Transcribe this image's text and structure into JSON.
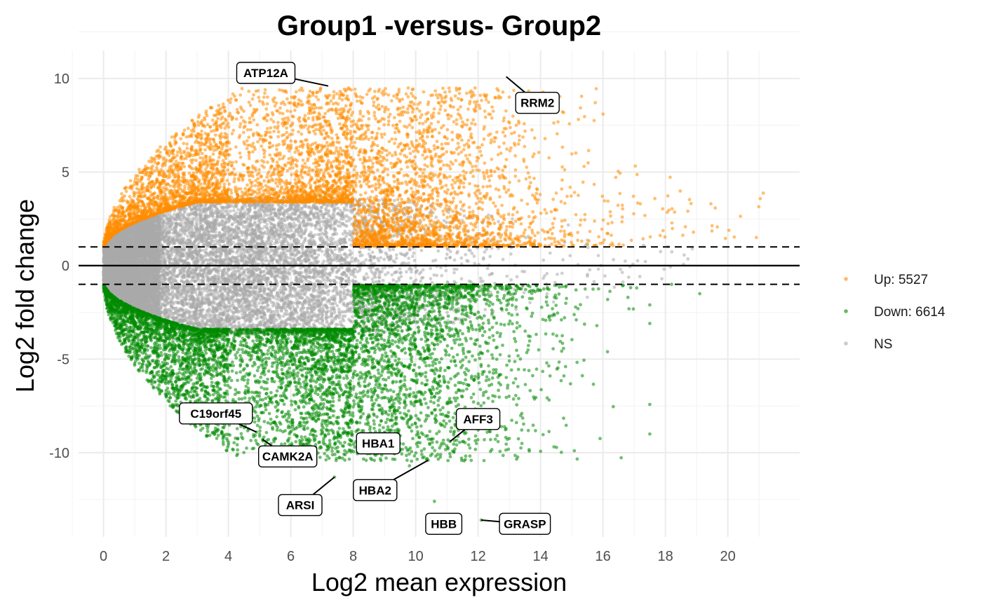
{
  "chart_data": {
    "type": "scatter",
    "title": "Group1 -versus- Group2",
    "xlabel": "Log2 mean expression",
    "ylabel": "Log2 fold change",
    "xlim": [
      -0.8,
      22.3
    ],
    "ylim": [
      -14.5,
      11.5
    ],
    "x_ticks": [
      0,
      2,
      4,
      6,
      8,
      10,
      12,
      14,
      16,
      18,
      20
    ],
    "y_ticks": [
      10,
      5,
      0,
      -5,
      -10
    ],
    "x_tick_labels": [
      "0",
      "2",
      "4",
      "6",
      "8",
      "10",
      "12",
      "14",
      "16",
      "18",
      "20"
    ],
    "y_tick_labels": [
      "10",
      "5",
      "0",
      "-5",
      "-10"
    ],
    "grid": true,
    "hlines": [
      {
        "y": 0,
        "style": "solid"
      },
      {
        "y": 1,
        "style": "dashed"
      },
      {
        "y": -1,
        "style": "dashed"
      }
    ],
    "legend_position": "right",
    "series": [
      {
        "name": "Up: 5527",
        "color": "#FF8C00",
        "count": 5527
      },
      {
        "name": "Down: 6614",
        "color": "#008B00",
        "count": 6614
      },
      {
        "name": "NS",
        "color": "#A9A9A9"
      }
    ],
    "labeled_points": [
      {
        "label": "ATP12A",
        "x": 7.2,
        "y": 9.6,
        "lx": 5.2,
        "ly": 10.3
      },
      {
        "label": "RRM2",
        "x": 12.9,
        "y": 10.1,
        "lx": 13.9,
        "ly": 8.7
      },
      {
        "label": "C19orf45",
        "x": 4.9,
        "y": -8.9,
        "lx": 3.6,
        "ly": -7.9
      },
      {
        "label": "CAMK2A",
        "x": 5.1,
        "y": -9.3,
        "lx": 5.9,
        "ly": -10.2
      },
      {
        "label": "ARSI",
        "x": 7.4,
        "y": -11.3,
        "lx": 6.3,
        "ly": -12.8
      },
      {
        "label": "HBA1",
        "x": 9.2,
        "y": -9.6,
        "lx": 8.8,
        "ly": -9.5
      },
      {
        "label": "HBA2",
        "x": 10.4,
        "y": -10.4,
        "lx": 8.7,
        "ly": -12.0
      },
      {
        "label": "AFF3",
        "x": 11.1,
        "y": -9.4,
        "lx": 12.0,
        "ly": -8.2
      },
      {
        "label": "HBB",
        "x": 11.1,
        "y": -13.6,
        "lx": 10.9,
        "ly": -13.8
      },
      {
        "label": "GRASP",
        "x": 12.1,
        "y": -13.6,
        "lx": 13.5,
        "ly": -13.8
      }
    ]
  }
}
